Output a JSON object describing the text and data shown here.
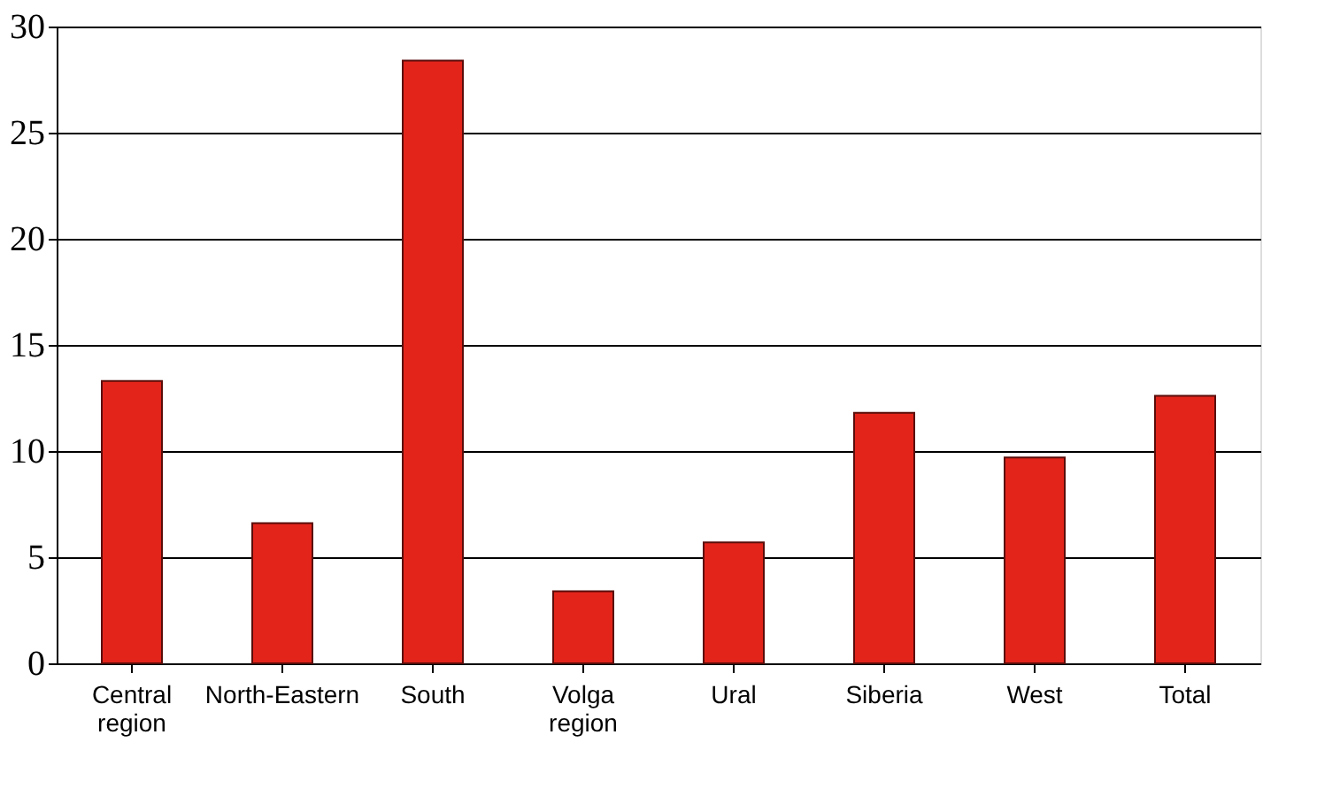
{
  "chart_data": {
    "type": "bar",
    "categories": [
      "Central region",
      "North-Eastern",
      "South",
      "Volga region",
      "Ural",
      "Siberia",
      "West",
      "Total"
    ],
    "values": [
      13.3,
      6.6,
      28.4,
      3.4,
      5.7,
      11.8,
      9.7,
      12.6
    ],
    "color": "#e3241b",
    "ylim": [
      0,
      30
    ],
    "yticks": [
      0,
      5,
      10,
      15,
      20,
      25,
      30
    ],
    "grid": "y"
  }
}
